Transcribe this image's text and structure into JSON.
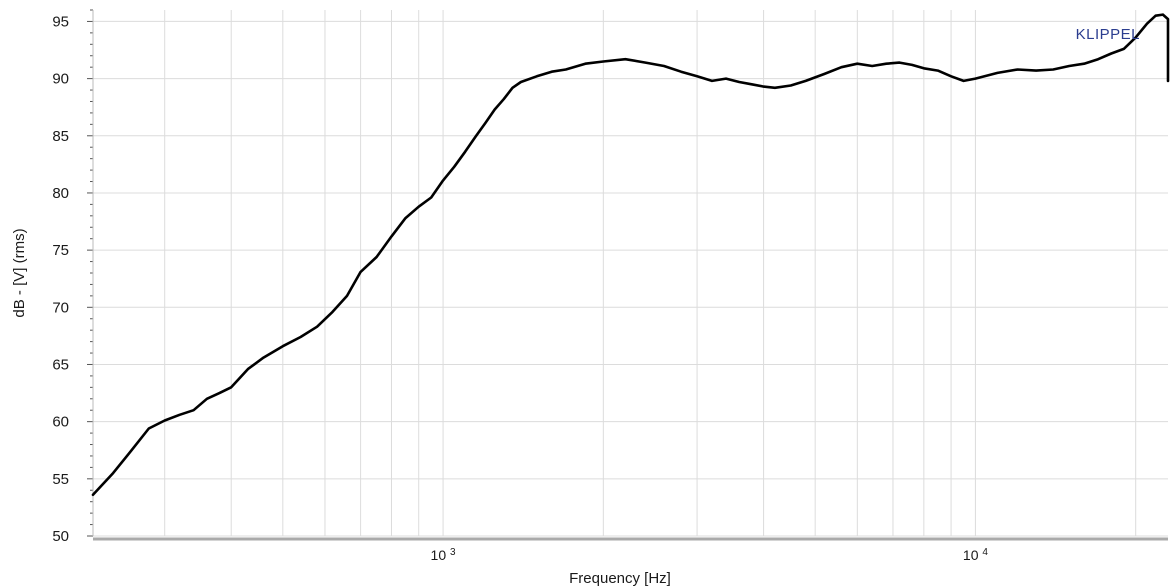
{
  "chart_data": {
    "type": "line",
    "title": "",
    "xlabel": "Frequency [Hz]",
    "ylabel": "dB - [V] (rms)",
    "x_scale": "log",
    "xlim": [
      220,
      23000
    ],
    "ylim": [
      50,
      96
    ],
    "y_ticks": [
      50,
      55,
      60,
      65,
      70,
      75,
      80,
      85,
      90,
      95
    ],
    "x_tick_labels": [
      {
        "value": 1000,
        "base": "10",
        "exp": "3"
      },
      {
        "value": 10000,
        "base": "10",
        "exp": "4"
      }
    ],
    "grid": true,
    "brand": "KLIPPEL",
    "colors": {
      "line": "#000000",
      "grid": "#dcdcdc",
      "brand": "#2b3d8f",
      "axis": "#555555"
    },
    "series": [
      {
        "name": "",
        "points": [
          [
            220,
            53.6
          ],
          [
            240,
            55.5
          ],
          [
            260,
            57.5
          ],
          [
            280,
            59.4
          ],
          [
            300,
            60.1
          ],
          [
            320,
            60.6
          ],
          [
            340,
            61.0
          ],
          [
            360,
            62.0
          ],
          [
            380,
            62.5
          ],
          [
            400,
            63.0
          ],
          [
            430,
            64.6
          ],
          [
            460,
            65.6
          ],
          [
            500,
            66.6
          ],
          [
            540,
            67.4
          ],
          [
            580,
            68.3
          ],
          [
            620,
            69.6
          ],
          [
            660,
            71.0
          ],
          [
            700,
            73.1
          ],
          [
            750,
            74.4
          ],
          [
            800,
            76.2
          ],
          [
            850,
            77.8
          ],
          [
            900,
            78.8
          ],
          [
            950,
            79.6
          ],
          [
            1000,
            81.1
          ],
          [
            1050,
            82.3
          ],
          [
            1100,
            83.6
          ],
          [
            1150,
            84.9
          ],
          [
            1200,
            86.1
          ],
          [
            1250,
            87.3
          ],
          [
            1300,
            88.2
          ],
          [
            1350,
            89.2
          ],
          [
            1400,
            89.7
          ],
          [
            1500,
            90.2
          ],
          [
            1600,
            90.6
          ],
          [
            1700,
            90.8
          ],
          [
            1850,
            91.3
          ],
          [
            2000,
            91.5
          ],
          [
            2200,
            91.7
          ],
          [
            2400,
            91.4
          ],
          [
            2600,
            91.1
          ],
          [
            2800,
            90.6
          ],
          [
            3000,
            90.2
          ],
          [
            3200,
            89.8
          ],
          [
            3400,
            90.0
          ],
          [
            3600,
            89.7
          ],
          [
            3800,
            89.5
          ],
          [
            4000,
            89.3
          ],
          [
            4200,
            89.2
          ],
          [
            4500,
            89.4
          ],
          [
            4800,
            89.8
          ],
          [
            5200,
            90.4
          ],
          [
            5600,
            91.0
          ],
          [
            6000,
            91.3
          ],
          [
            6400,
            91.1
          ],
          [
            6800,
            91.3
          ],
          [
            7200,
            91.4
          ],
          [
            7600,
            91.2
          ],
          [
            8000,
            90.9
          ],
          [
            8500,
            90.7
          ],
          [
            9000,
            90.2
          ],
          [
            9500,
            89.8
          ],
          [
            10000,
            90.0
          ],
          [
            11000,
            90.5
          ],
          [
            12000,
            90.8
          ],
          [
            13000,
            90.7
          ],
          [
            14000,
            90.8
          ],
          [
            15000,
            91.1
          ],
          [
            16000,
            91.3
          ],
          [
            17000,
            91.7
          ],
          [
            18000,
            92.2
          ],
          [
            19000,
            92.6
          ],
          [
            20000,
            93.6
          ],
          [
            21000,
            94.8
          ],
          [
            21800,
            95.5
          ],
          [
            22500,
            95.6
          ],
          [
            23000,
            95.2
          ],
          [
            23600,
            94.3
          ],
          [
            24200,
            92.2
          ],
          [
            24700,
            89.8
          ]
        ]
      }
    ]
  }
}
